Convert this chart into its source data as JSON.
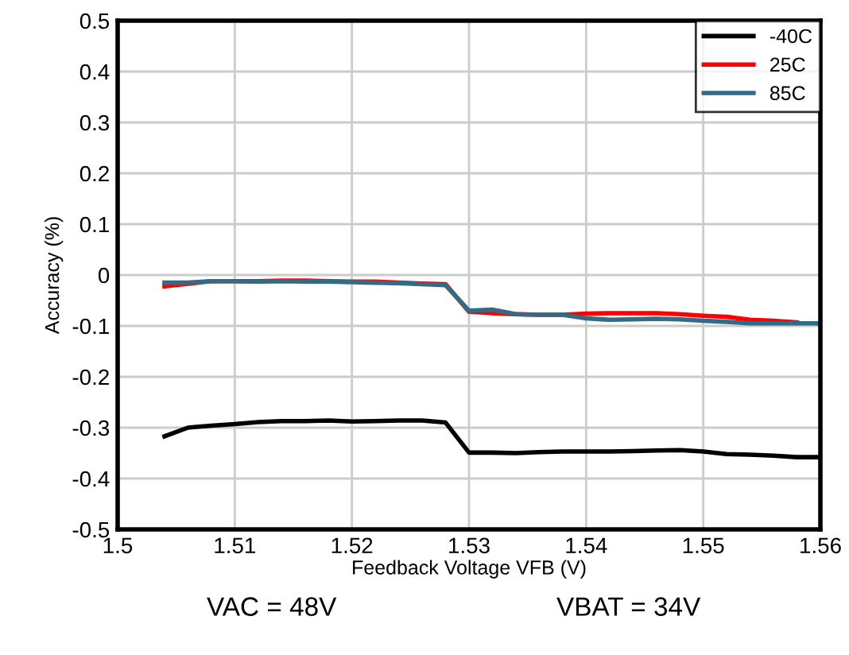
{
  "chart_data": {
    "type": "line",
    "xlabel": "Feedback Voltage VFB (V)",
    "ylabel": "Accuracy (%)",
    "x": [
      1.504,
      1.506,
      1.508,
      1.51,
      1.512,
      1.514,
      1.516,
      1.518,
      1.52,
      1.522,
      1.524,
      1.526,
      1.528,
      1.53,
      1.532,
      1.534,
      1.536,
      1.538,
      1.54,
      1.542,
      1.544,
      1.546,
      1.548,
      1.55,
      1.552,
      1.554,
      1.556,
      1.558,
      1.56
    ],
    "series": [
      {
        "name": "-40C",
        "color": "#000000",
        "values": [
          -0.317,
          -0.3,
          -0.296,
          -0.293,
          -0.289,
          -0.287,
          -0.287,
          -0.286,
          -0.288,
          -0.287,
          -0.286,
          -0.286,
          -0.29,
          -0.349,
          -0.349,
          -0.35,
          -0.348,
          -0.347,
          -0.347,
          -0.347,
          -0.346,
          -0.345,
          -0.344,
          -0.347,
          -0.352,
          -0.353,
          -0.355,
          -0.358,
          -0.358
        ]
      },
      {
        "name": "25C",
        "color": "#ff0000",
        "values": [
          -0.022,
          -0.017,
          -0.012,
          -0.012,
          -0.012,
          -0.011,
          -0.011,
          -0.012,
          -0.013,
          -0.013,
          -0.015,
          -0.017,
          -0.018,
          -0.072,
          -0.075,
          -0.077,
          -0.078,
          -0.078,
          -0.076,
          -0.075,
          -0.075,
          -0.075,
          -0.077,
          -0.08,
          -0.082,
          -0.088,
          -0.09,
          -0.093,
          null
        ]
      },
      {
        "name": "85C",
        "color": "#336b87",
        "values": [
          -0.015,
          -0.015,
          -0.012,
          -0.012,
          -0.013,
          -0.012,
          -0.013,
          -0.013,
          -0.014,
          -0.015,
          -0.016,
          -0.018,
          -0.02,
          -0.07,
          -0.068,
          -0.077,
          -0.078,
          -0.078,
          -0.085,
          -0.088,
          -0.087,
          -0.086,
          -0.087,
          -0.09,
          -0.092,
          -0.095,
          -0.095,
          -0.095,
          -0.095
        ]
      }
    ],
    "xlim": [
      1.5,
      1.56
    ],
    "xticks": [
      1.5,
      1.51,
      1.52,
      1.53,
      1.54,
      1.55,
      1.56
    ],
    "ylim": [
      -0.5,
      0.5
    ],
    "yticks": [
      -0.5,
      -0.4,
      -0.3,
      -0.2,
      -0.1,
      0,
      0.1,
      0.2,
      0.3,
      0.4,
      0.5
    ],
    "grid": true,
    "legend": "top right",
    "annotations": [
      "VAC = 48V",
      "VBAT = 34V"
    ]
  }
}
